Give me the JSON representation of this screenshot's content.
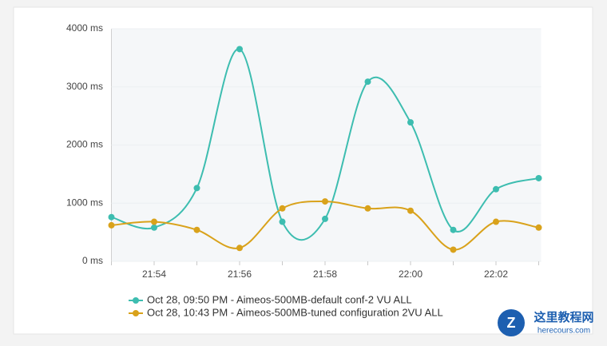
{
  "chart_data": {
    "type": "line",
    "categories": [
      null,
      "21:54",
      null,
      "21:56",
      null,
      "21:58",
      null,
      "22:00",
      null,
      "22:02",
      null
    ],
    "series": [
      {
        "name": "Oct 28, 09:50 PM - Aimeos-500MB-default conf-2 VU ALL",
        "color": "#3dbdb0",
        "values": [
          760,
          580,
          1260,
          3650,
          680,
          730,
          3090,
          2390,
          540,
          1240,
          1430
        ]
      },
      {
        "name": "Oct 28, 10:43 PM - Aimeos-500MB-tuned configuration 2VU ALL",
        "color": "#d9a21b",
        "values": [
          620,
          680,
          540,
          230,
          910,
          1030,
          910,
          870,
          200,
          680,
          580
        ]
      }
    ],
    "ylim": [
      0,
      4000
    ],
    "yticks": [
      {
        "value": 0,
        "label": "0 ms"
      },
      {
        "value": 1000,
        "label": "1000 ms"
      },
      {
        "value": 2000,
        "label": "2000 ms"
      },
      {
        "value": 3000,
        "label": "3000 ms"
      },
      {
        "value": 4000,
        "label": "4000 ms"
      }
    ],
    "grid": true,
    "legend": "bottom"
  },
  "watermark": {
    "title": "这里教程网",
    "url": "herecours.com"
  }
}
